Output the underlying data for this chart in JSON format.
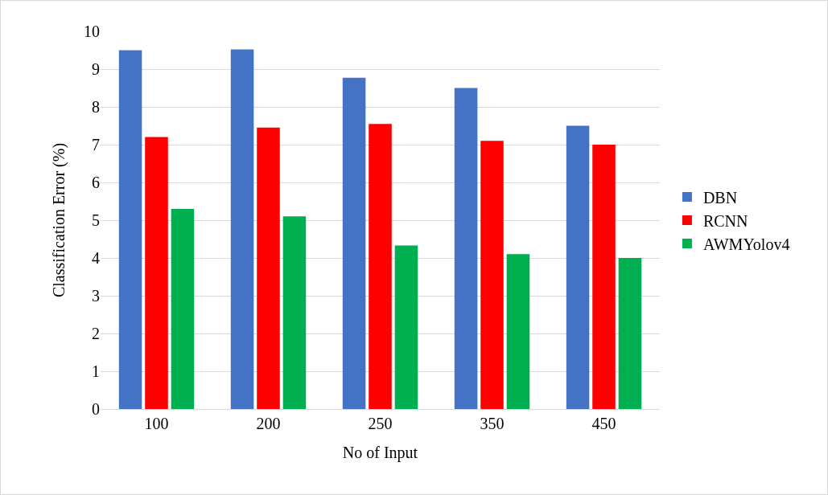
{
  "chart_data": {
    "type": "bar",
    "xlabel": "No of Input",
    "ylabel": "Classification Error (%)",
    "categories": [
      "100",
      "200",
      "250",
      "350",
      "450"
    ],
    "series": [
      {
        "name": "DBN",
        "color": "#4472c4",
        "values": [
          9.5,
          9.52,
          8.77,
          8.5,
          7.5
        ]
      },
      {
        "name": "RCNN",
        "color": "#ff0000",
        "values": [
          7.2,
          7.45,
          7.55,
          7.1,
          7.0
        ]
      },
      {
        "name": "AWMYolov4",
        "color": "#00b050",
        "values": [
          5.3,
          5.1,
          4.33,
          4.1,
          4.0
        ]
      }
    ],
    "ylim": [
      0,
      10
    ],
    "yticks": [
      0,
      1,
      2,
      3,
      4,
      5,
      6,
      7,
      8,
      9,
      10
    ],
    "grid": "y",
    "legend": "right"
  }
}
